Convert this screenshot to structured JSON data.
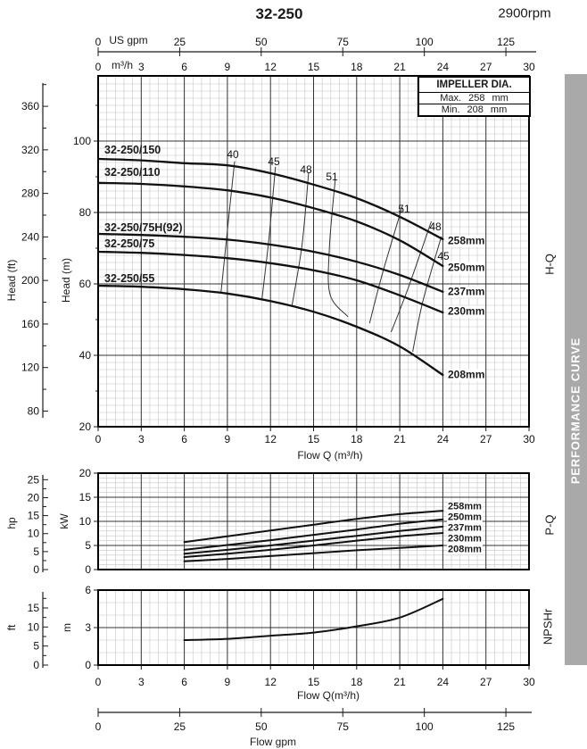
{
  "header": {
    "title": "32-250",
    "rpm": "2900rpm"
  },
  "impeller_box": {
    "title": "IMPELLER DIA.",
    "max_label": "Max.",
    "max_value": "258",
    "max_unit": "mm",
    "min_label": "Min.",
    "min_value": "208",
    "min_unit": "mm"
  },
  "banner": {
    "text": "PERFORMANCE CURVE",
    "color": "#a9a9a9"
  },
  "top_axis": {
    "gpm_unit": "US gpm",
    "gpm_ticks": [
      "0",
      "25",
      "50",
      "75",
      "100",
      "125"
    ],
    "m3h_unit": "m³/h",
    "m3h_ticks": [
      "0",
      "3",
      "6",
      "9",
      "12",
      "15",
      "18",
      "21",
      "24",
      "27",
      "30"
    ]
  },
  "hq_chart": {
    "side_label": "H-Q",
    "ylabel_imperial": "Head (ft)",
    "ylabel_metric": "Head (m)",
    "xlabel": "Flow Q (m³/h)",
    "ft_ticks": [
      "80",
      "120",
      "160",
      "200",
      "240",
      "280",
      "320",
      "360"
    ],
    "m_ticks": [
      "20",
      "40",
      "60",
      "80",
      "100"
    ],
    "x_ticks": [
      "0",
      "3",
      "6",
      "9",
      "12",
      "15",
      "18",
      "21",
      "24",
      "27",
      "30"
    ],
    "curve_labels": [
      "32-250/150",
      "32-250/110",
      "32-250/75H(92)",
      "32-250/75",
      "32-250/55"
    ],
    "dia_labels": [
      "258mm",
      "250mm",
      "237mm",
      "230mm",
      "208mm"
    ],
    "eff_left": [
      "40",
      "45",
      "48",
      "51"
    ],
    "eff_right": [
      "51",
      "48",
      "45"
    ]
  },
  "pq_chart": {
    "side_label": "P-Q",
    "ylabel_imperial": "hp",
    "ylabel_metric": "kW",
    "kw_ticks": [
      "0",
      "5",
      "10",
      "15",
      "20"
    ],
    "hp_ticks": [
      "0",
      "5",
      "10",
      "15",
      "20",
      "25"
    ],
    "dia_labels": [
      "258mm",
      "250mm",
      "237mm",
      "230mm",
      "208mm"
    ]
  },
  "npshr_chart": {
    "side_label": "NPSHr",
    "ylabel_imperial": "ft",
    "ylabel_metric": "m",
    "m_ticks": [
      "0",
      "3",
      "6"
    ],
    "ft_ticks": [
      "0",
      "5",
      "10",
      "15"
    ],
    "x_ticks": [
      "0",
      "3",
      "6",
      "9",
      "12",
      "15",
      "18",
      "21",
      "24",
      "27",
      "30"
    ],
    "xlabel": "Flow Q(m³/h)"
  },
  "bottom_axis": {
    "label": "Flow gpm",
    "ticks": [
      "0",
      "25",
      "50",
      "75",
      "100",
      "125"
    ]
  },
  "chart_data": [
    {
      "type": "line",
      "title": "H-Q performance curves, 32-250 pump @ 2900rpm",
      "xlabel": "Flow Q (m³/h)",
      "ylabel": "Head (m)",
      "xlim": [
        0,
        30
      ],
      "ylim": [
        20,
        118
      ],
      "grid": true,
      "series": [
        {
          "name": "32-250/150 (258mm)",
          "points": [
            [
              0,
              95.0
            ],
            [
              3,
              94.6
            ],
            [
              6,
              93.8
            ],
            [
              9,
              93.2
            ],
            [
              12,
              91.0
            ],
            [
              15,
              87.8
            ],
            [
              18,
              84.0
            ],
            [
              21,
              78.8
            ],
            [
              24,
              72.5
            ]
          ]
        },
        {
          "name": "32-250/110 (250mm)",
          "points": [
            [
              0,
              88.3
            ],
            [
              3,
              88.0
            ],
            [
              6,
              87.3
            ],
            [
              9,
              86.2
            ],
            [
              12,
              84.2
            ],
            [
              15,
              81.2
            ],
            [
              18,
              77.5
            ],
            [
              21,
              72.2
            ],
            [
              24,
              65.0
            ]
          ]
        },
        {
          "name": "32-250/75H(92) (237mm)",
          "points": [
            [
              0,
              74.0
            ],
            [
              3,
              73.7
            ],
            [
              6,
              73.2
            ],
            [
              9,
              72.4
            ],
            [
              12,
              71.0
            ],
            [
              15,
              69.0
            ],
            [
              18,
              66.2
            ],
            [
              21,
              62.5
            ],
            [
              24,
              57.8
            ]
          ]
        },
        {
          "name": "32-250/75 (230mm)",
          "points": [
            [
              0,
              69.0
            ],
            [
              3,
              68.7
            ],
            [
              6,
              68.1
            ],
            [
              9,
              67.2
            ],
            [
              12,
              65.8
            ],
            [
              15,
              63.8
            ],
            [
              18,
              61.0
            ],
            [
              21,
              56.8
            ],
            [
              24,
              52.0
            ]
          ]
        },
        {
          "name": "32-250/55 (208mm)",
          "points": [
            [
              0,
              59.5
            ],
            [
              3,
              59.2
            ],
            [
              6,
              58.5
            ],
            [
              9,
              57.3
            ],
            [
              12,
              55.2
            ],
            [
              15,
              52.2
            ],
            [
              18,
              48.0
            ],
            [
              21,
              42.5
            ],
            [
              24,
              34.5
            ]
          ]
        }
      ],
      "efficiency_contours": [
        {
          "label": "40",
          "points": [
            [
              9.5,
              94.3
            ],
            [
              9.0,
              75.0
            ],
            [
              8.55,
              57.5
            ]
          ]
        },
        {
          "label": "45",
          "points": [
            [
              12.35,
              92.8
            ],
            [
              11.9,
              73.0
            ],
            [
              11.4,
              55.5
            ]
          ]
        },
        {
          "label": "48",
          "points": [
            [
              14.65,
              91.0
            ],
            [
              14.2,
              71.0
            ],
            [
              13.5,
              54.0
            ]
          ]
        },
        {
          "label": "51",
          "points": [
            [
              16.5,
              89.0
            ],
            [
              16.1,
              70.0
            ],
            [
              16.15,
              57.0
            ],
            [
              17.4,
              50.8
            ]
          ]
        },
        {
          "label": "51",
          "points": [
            [
              21.2,
              82.0
            ],
            [
              19.8,
              63.0
            ],
            [
              18.9,
              49.0
            ]
          ]
        },
        {
          "label": "48",
          "points": [
            [
              23.2,
              77.5
            ],
            [
              21.6,
              59.0
            ],
            [
              20.4,
              46.5
            ]
          ]
        },
        {
          "label": "45",
          "points": [
            [
              23.9,
              73.3
            ],
            [
              22.6,
              55.0
            ],
            [
              21.9,
              41.0
            ]
          ]
        }
      ]
    },
    {
      "type": "line",
      "title": "P-Q power curves",
      "xlabel": "Flow Q (m³/h)",
      "ylabel": "kW",
      "xlim": [
        0,
        30
      ],
      "ylim": [
        0,
        20
      ],
      "grid": true,
      "series": [
        {
          "name": "258mm",
          "points": [
            [
              6,
              5.7
            ],
            [
              9,
              6.9
            ],
            [
              12,
              8.1
            ],
            [
              15,
              9.3
            ],
            [
              18,
              10.5
            ],
            [
              21,
              11.5
            ],
            [
              24,
              12.2
            ]
          ]
        },
        {
          "name": "250mm",
          "points": [
            [
              6,
              4.1
            ],
            [
              9,
              5.1
            ],
            [
              12,
              6.1
            ],
            [
              15,
              7.2
            ],
            [
              18,
              8.3
            ],
            [
              21,
              9.5
            ],
            [
              24,
              10.4
            ]
          ]
        },
        {
          "name": "237mm",
          "points": [
            [
              6,
              3.3
            ],
            [
              9,
              4.1
            ],
            [
              12,
              5.0
            ],
            [
              15,
              6.0
            ],
            [
              18,
              7.0
            ],
            [
              21,
              8.0
            ],
            [
              24,
              8.9
            ]
          ]
        },
        {
          "name": "230mm",
          "points": [
            [
              6,
              2.6
            ],
            [
              9,
              3.3
            ],
            [
              12,
              4.1
            ],
            [
              15,
              5.0
            ],
            [
              18,
              6.0
            ],
            [
              21,
              6.9
            ],
            [
              24,
              7.6
            ]
          ]
        },
        {
          "name": "208mm",
          "points": [
            [
              6,
              1.7
            ],
            [
              9,
              2.2
            ],
            [
              12,
              2.8
            ],
            [
              15,
              3.4
            ],
            [
              18,
              4.0
            ],
            [
              21,
              4.5
            ],
            [
              24,
              5.0
            ]
          ]
        }
      ]
    },
    {
      "type": "line",
      "title": "NPSHr curve",
      "xlabel": "Flow Q(m³/h)",
      "ylabel": "m",
      "xlim": [
        0,
        30
      ],
      "ylim": [
        0,
        6
      ],
      "grid": true,
      "series": [
        {
          "name": "NPSHr",
          "points": [
            [
              6,
              2.0
            ],
            [
              9,
              2.1
            ],
            [
              12,
              2.35
            ],
            [
              15,
              2.6
            ],
            [
              18,
              3.1
            ],
            [
              21,
              3.8
            ],
            [
              24,
              5.3
            ]
          ]
        }
      ]
    }
  ]
}
